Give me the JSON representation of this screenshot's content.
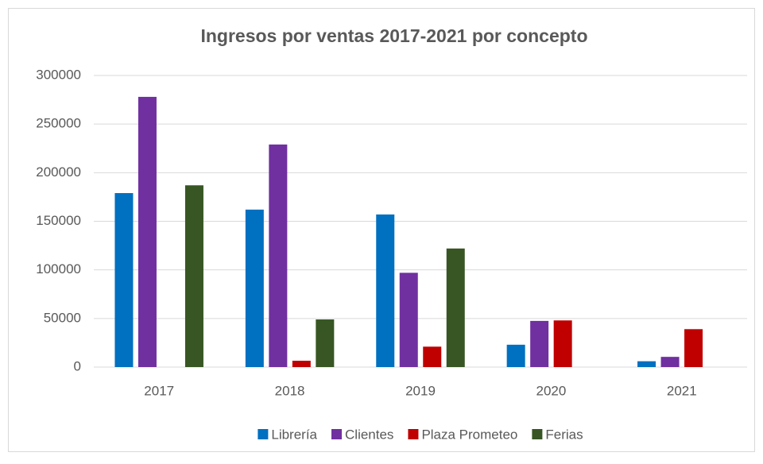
{
  "chart_data": {
    "type": "bar",
    "title": "Ingresos por ventas 2017-2021 por concepto",
    "categories": [
      "2017",
      "2018",
      "2019",
      "2020",
      "2021"
    ],
    "series": [
      {
        "name": "Librería",
        "color": "#0070c0",
        "values": [
          179000,
          162000,
          157000,
          23000,
          6000
        ]
      },
      {
        "name": "Clientes",
        "color": "#7030a0",
        "values": [
          278000,
          229000,
          97000,
          47500,
          10500
        ]
      },
      {
        "name": "Plaza Prometeo",
        "color": "#c00000",
        "values": [
          0,
          6500,
          21000,
          48000,
          39000
        ]
      },
      {
        "name": "Ferias",
        "color": "#375623",
        "values": [
          187000,
          49000,
          122000,
          0,
          0
        ]
      }
    ],
    "ylim": [
      0,
      300000
    ],
    "yticks": [
      0,
      50000,
      100000,
      150000,
      200000,
      250000,
      300000
    ],
    "grid": true,
    "legend": "bottom"
  }
}
